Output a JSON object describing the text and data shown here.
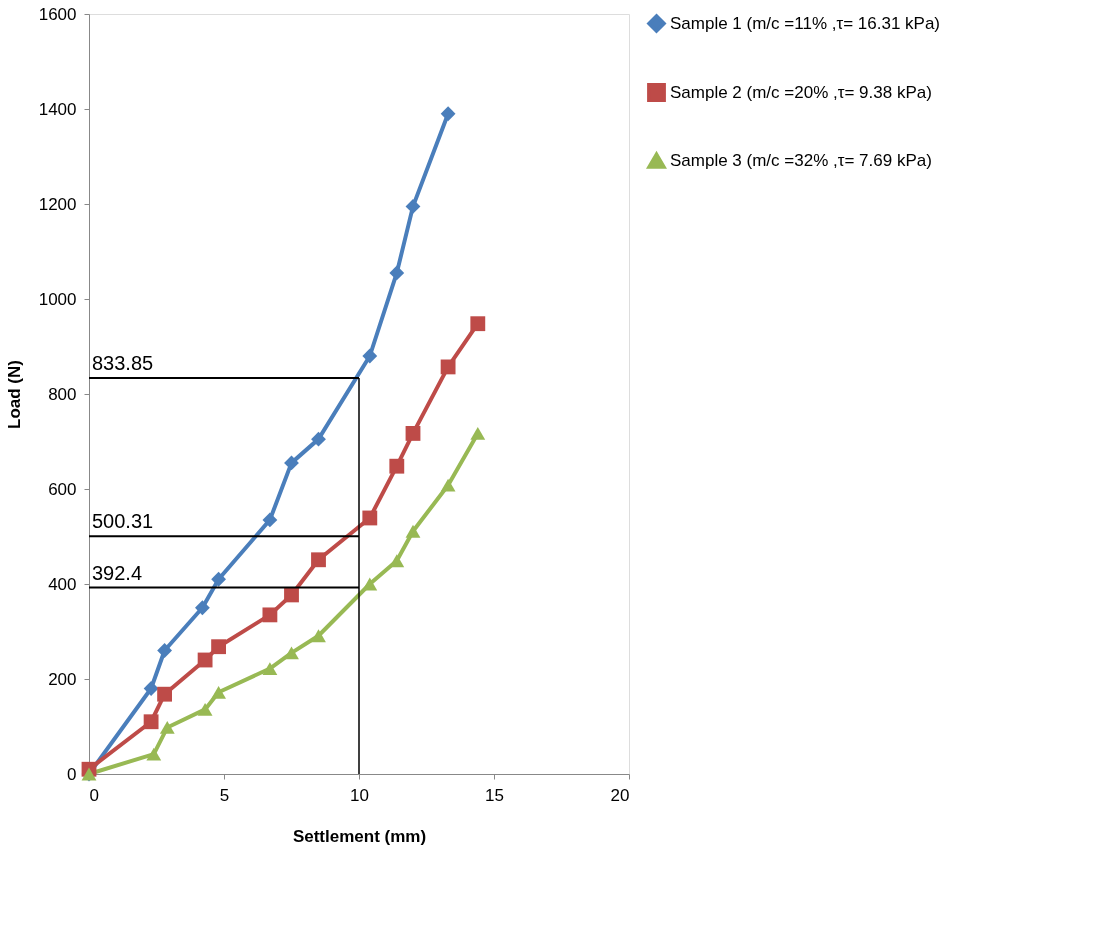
{
  "chart_data": {
    "type": "line",
    "xlabel": "Settlement (mm)",
    "ylabel": "Load  (N)",
    "xlim": [
      0,
      20
    ],
    "xticks": [
      0,
      5,
      10,
      15,
      20
    ],
    "ylim": [
      0,
      1600
    ],
    "yticks": [
      0,
      200,
      400,
      600,
      800,
      1000,
      1200,
      1400,
      1600
    ],
    "grid": false,
    "legend": "right",
    "series": [
      {
        "name": "Sample 1 (m/c =11% ,τ= 16.31 kPa)",
        "color": "#4a7ebb",
        "marker": "diamond",
        "x": [
          0,
          2.3,
          2.8,
          4.2,
          4.8,
          6.7,
          7.5,
          8.5,
          10.4,
          11.4,
          12.0,
          13.3
        ],
        "values": [
          0,
          180,
          260,
          350,
          410,
          535,
          655,
          705,
          880,
          1055,
          1195,
          1390
        ]
      },
      {
        "name": "Sample 2 (m/c =20% ,τ= 9.38 kPa)",
        "color": "#be4b48",
        "marker": "square",
        "x": [
          0,
          2.3,
          2.8,
          4.3,
          4.8,
          6.7,
          7.5,
          8.5,
          10.4,
          11.4,
          12.0,
          13.3,
          14.4
        ],
        "values": [
          10,
          110,
          168,
          240,
          268,
          335,
          377,
          451,
          539,
          648,
          717,
          857,
          948
        ]
      },
      {
        "name": "Sample 3 (m/c =32% ,τ= 7.69 kPa)",
        "color": "#98b954",
        "marker": "triangle",
        "x": [
          0,
          2.4,
          2.9,
          4.3,
          4.8,
          6.7,
          7.5,
          8.5,
          10.4,
          11.4,
          12.0,
          13.3,
          14.4
        ],
        "values": [
          0,
          42,
          98,
          136,
          172,
          222,
          255,
          291,
          400,
          449,
          511,
          608,
          717
        ]
      }
    ],
    "ref_lines": [
      {
        "axis": "x",
        "value": 10,
        "color": "#000000"
      },
      {
        "axis": "y",
        "value": 833.85,
        "label": "833.85",
        "color": "#000000"
      },
      {
        "axis": "y",
        "value": 500.31,
        "label": "500.31",
        "color": "#000000"
      },
      {
        "axis": "y",
        "value": 392.4,
        "label": "392.4",
        "color": "#000000"
      }
    ]
  }
}
